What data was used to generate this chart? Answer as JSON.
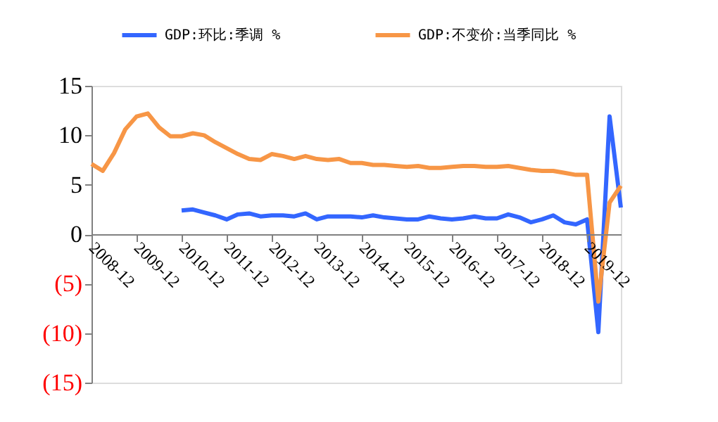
{
  "chart_data": {
    "type": "line",
    "categories": [
      "2008-12",
      null,
      null,
      null,
      "2009-12",
      null,
      null,
      null,
      "2010-12",
      null,
      null,
      null,
      "2011-12",
      null,
      null,
      null,
      "2012-12",
      null,
      null,
      null,
      "2013-12",
      null,
      null,
      null,
      "2014-12",
      null,
      null,
      null,
      "2015-12",
      null,
      null,
      null,
      "2016-12",
      null,
      null,
      null,
      "2017-12",
      null,
      null,
      null,
      "2018-12",
      null,
      null,
      null,
      "2019-12",
      null,
      null,
      null
    ],
    "series": [
      {
        "name": "GDP:环比:季调 %",
        "color": "#3366ff",
        "values": [
          null,
          null,
          null,
          null,
          null,
          null,
          null,
          null,
          2.4,
          2.5,
          2.2,
          1.9,
          1.5,
          2.0,
          2.1,
          1.8,
          1.9,
          1.9,
          1.8,
          2.1,
          1.5,
          1.8,
          1.8,
          1.8,
          1.7,
          1.9,
          1.7,
          1.6,
          1.5,
          1.5,
          1.8,
          1.6,
          1.5,
          1.6,
          1.8,
          1.6,
          1.6,
          2.0,
          1.7,
          1.2,
          1.5,
          1.9,
          1.2,
          1.0,
          1.5,
          -9.9,
          11.9,
          2.7
        ]
      },
      {
        "name": "GDP:不变价:当季同比 %",
        "color": "#f79646",
        "values": [
          7.1,
          6.4,
          8.2,
          10.6,
          11.9,
          12.2,
          10.8,
          9.9,
          9.9,
          10.2,
          10.0,
          9.3,
          8.7,
          8.1,
          7.6,
          7.5,
          8.1,
          7.9,
          7.6,
          7.9,
          7.6,
          7.5,
          7.6,
          7.2,
          7.2,
          7.0,
          7.0,
          6.9,
          6.8,
          6.9,
          6.7,
          6.7,
          6.8,
          6.9,
          6.9,
          6.8,
          6.8,
          6.9,
          6.7,
          6.5,
          6.4,
          6.4,
          6.2,
          6.0,
          6.0,
          -6.8,
          3.2,
          4.9
        ]
      }
    ],
    "ylim": [
      -15,
      15
    ],
    "yticks": [
      {
        "value": -15,
        "label": "(15)"
      },
      {
        "value": -10,
        "label": "(10)"
      },
      {
        "value": -5,
        "label": "(5)"
      },
      0,
      5,
      10,
      15
    ],
    "grid": false,
    "legend": "top",
    "marker": "none",
    "line_style": "solid"
  }
}
